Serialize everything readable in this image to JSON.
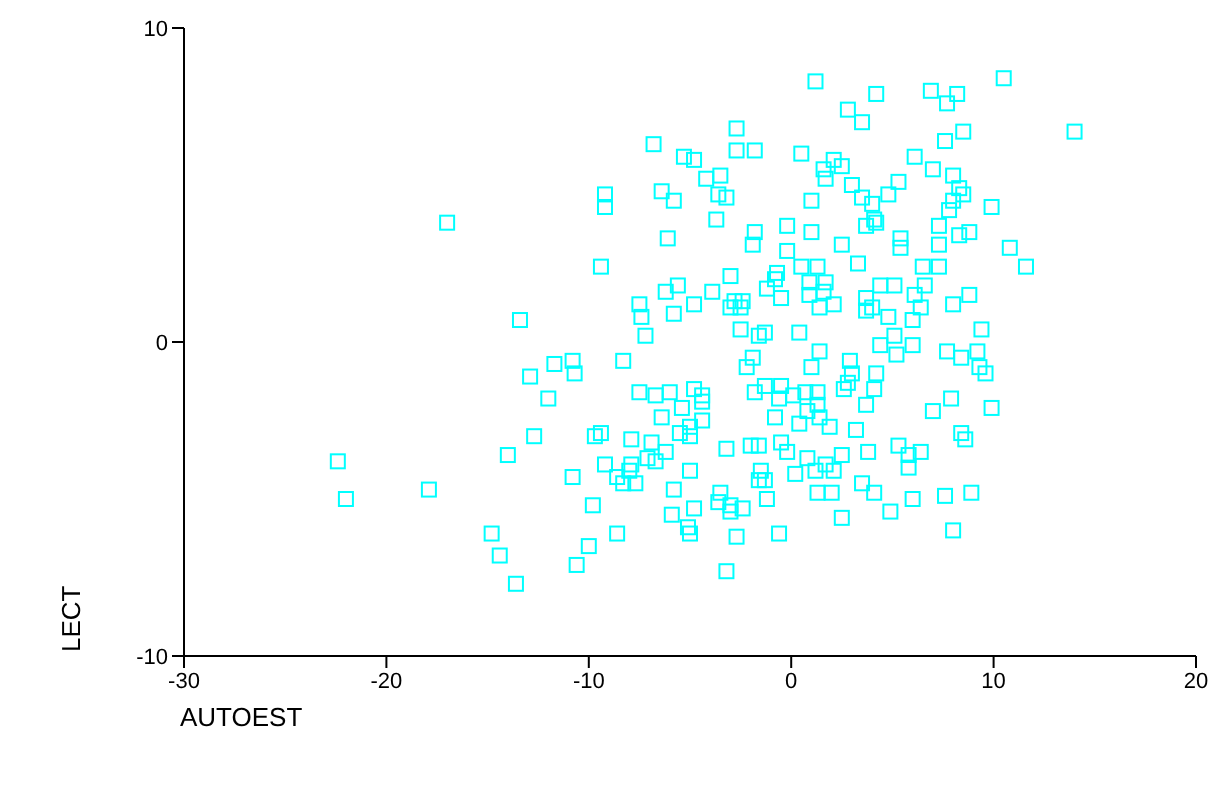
{
  "chart_data": {
    "type": "scatter",
    "xlabel": "AUTOEST",
    "ylabel": "LECT",
    "xlim": [
      -30,
      20
    ],
    "ylim": [
      -10,
      10
    ],
    "xticks": [
      -30,
      -20,
      -10,
      0,
      10,
      20
    ],
    "yticks": [
      -10,
      0,
      10
    ],
    "grid": false,
    "legend": false,
    "marker": "square",
    "series": [
      {
        "color": "#00ffff",
        "x": [
          -6.8,
          -5.3,
          -4.8,
          -9.2,
          -9.2,
          -6.4,
          -5.8,
          -17.0,
          -6.1,
          -9.4,
          -5.6,
          -6.2,
          -7.5,
          -7.4,
          -5.8,
          -4.8,
          -13.4,
          -7.2,
          1.2,
          4.2,
          6.9,
          8.2,
          7.7,
          10.5,
          2.8,
          3.5,
          -2.7,
          7.6,
          8.5,
          14.0,
          -2.7,
          -1.8,
          0.5,
          6.1,
          2.1,
          1.6,
          2.5,
          1.7,
          -4.2,
          -3.5,
          7.0,
          8.0,
          8.3,
          8.5,
          8.0,
          7.8,
          9.9,
          5.3,
          4.8,
          3.0,
          3.5,
          4.0,
          4.1,
          4.2,
          3.7,
          -3.6,
          -3.2,
          1.0,
          -3.7,
          -1.8,
          -1.9,
          -0.2,
          1.0,
          -0.2,
          2.5,
          5.4,
          5.4,
          7.3,
          7.3,
          8.3,
          8.8,
          10.8,
          11.6,
          0.5,
          1.3,
          3.3,
          6.5,
          7.3,
          -3.0,
          -0.7,
          -0.8,
          -1.2,
          0.9,
          1.7,
          0.9,
          1.6,
          4.4,
          5.1,
          6.6,
          -0.5,
          -3.9,
          -2.8,
          -2.4,
          -3.0,
          -2.5,
          1.4,
          2.1,
          3.7,
          4.0,
          3.7,
          6.1,
          6.4,
          8.0,
          8.8,
          4.8,
          6.0,
          -2.5,
          -1.6,
          -1.3,
          0.4,
          5.1,
          9.4,
          -10.8,
          -11.7,
          -8.3,
          -12.9,
          -10.7,
          -12.0,
          -7.5,
          -6.7,
          -6.0,
          -4.8,
          -5.4,
          -6.4,
          -5.0,
          -5.5,
          -5.0,
          -12.7,
          -9.7,
          -9.4,
          -7.9,
          -6.9,
          -6.2,
          -7.1,
          -6.7,
          -14.0,
          -22.4,
          -22.0,
          -17.9,
          -10.8,
          -9.2,
          -7.9,
          -8.6,
          -8.3,
          -7.7,
          -8.0,
          -5.8,
          -5.0,
          -9.8,
          -5.9,
          -4.8,
          -5.1,
          -5.0,
          -8.6,
          -14.8,
          -14.4,
          -10.0,
          -10.6,
          -13.6,
          4.4,
          5.2,
          6.0,
          7.7,
          8.4,
          9.2,
          9.3,
          9.6,
          1.4,
          -1.9,
          -2.2,
          1.0,
          2.9,
          3.0,
          4.2,
          2.8,
          2.6,
          4.1,
          -4.4,
          -4.4,
          -4.4,
          -1.3,
          -1.8,
          -0.5,
          -0.6,
          0.1,
          0.7,
          1.3,
          1.3,
          0.8,
          1.4,
          1.9,
          0.4,
          -0.8,
          3.7,
          3.2,
          7.0,
          7.9,
          9.9,
          8.4,
          8.6,
          -0.5,
          -0.2,
          -3.2,
          -2.0,
          -1.6,
          0.8,
          1.2,
          1.7,
          2.1,
          2.5,
          3.8,
          5.3,
          5.8,
          6.4,
          5.8,
          0.2,
          -1.5,
          -1.6,
          -1.3,
          1.3,
          2.0,
          3.5,
          4.1,
          6.0,
          7.6,
          8.9,
          -1.2,
          -3.5,
          -3.6,
          -3.0,
          -3.0,
          -2.4,
          2.5,
          4.9,
          -0.6,
          -2.7,
          8.0,
          -3.2
        ],
        "values": [
          6.3,
          5.9,
          5.8,
          4.7,
          4.3,
          4.8,
          4.5,
          3.8,
          3.3,
          2.4,
          1.8,
          1.6,
          1.2,
          0.8,
          0.9,
          1.2,
          0.7,
          0.2,
          8.3,
          7.9,
          8.0,
          7.9,
          7.6,
          8.4,
          7.4,
          7.0,
          6.8,
          6.4,
          6.7,
          6.7,
          6.1,
          6.1,
          6.0,
          5.9,
          5.8,
          5.5,
          5.6,
          5.2,
          5.2,
          5.3,
          5.5,
          5.3,
          4.9,
          4.7,
          4.5,
          4.2,
          4.3,
          5.1,
          4.7,
          5.0,
          4.6,
          4.4,
          3.9,
          3.8,
          3.7,
          4.7,
          4.6,
          4.5,
          3.9,
          3.5,
          3.1,
          3.7,
          3.5,
          2.9,
          3.1,
          3.3,
          3.0,
          3.7,
          3.1,
          3.4,
          3.5,
          3.0,
          2.4,
          2.4,
          2.4,
          2.5,
          2.4,
          2.4,
          2.1,
          2.2,
          2.0,
          1.7,
          1.9,
          1.9,
          1.5,
          1.6,
          1.8,
          1.8,
          1.8,
          1.4,
          1.6,
          1.3,
          1.3,
          1.1,
          1.1,
          1.1,
          1.2,
          1.4,
          1.1,
          1.0,
          1.5,
          1.1,
          1.2,
          1.5,
          0.8,
          0.7,
          0.4,
          0.2,
          0.3,
          0.3,
          0.2,
          0.4,
          -0.6,
          -0.7,
          -0.6,
          -1.1,
          -1.0,
          -1.8,
          -1.6,
          -1.7,
          -1.6,
          -1.5,
          -2.1,
          -2.4,
          -2.7,
          -2.9,
          -3.0,
          -3.0,
          -3.0,
          -2.9,
          -3.1,
          -3.2,
          -3.5,
          -3.7,
          -3.8,
          -3.6,
          -3.8,
          -5.0,
          -4.7,
          -4.3,
          -3.9,
          -3.9,
          -4.3,
          -4.5,
          -4.5,
          -4.1,
          -4.7,
          -4.1,
          -5.2,
          -5.5,
          -5.3,
          -5.9,
          -6.1,
          -6.1,
          -6.1,
          -6.8,
          -6.5,
          -7.1,
          -7.7,
          -0.1,
          -0.4,
          -0.1,
          -0.3,
          -0.5,
          -0.3,
          -0.8,
          -1.0,
          -0.3,
          -0.5,
          -0.8,
          -0.8,
          -0.6,
          -1.0,
          -1.0,
          -1.3,
          -1.5,
          -1.5,
          -1.7,
          -1.9,
          -2.5,
          -1.4,
          -1.6,
          -1.4,
          -1.8,
          -1.7,
          -1.6,
          -1.6,
          -2.0,
          -2.2,
          -2.4,
          -2.7,
          -2.6,
          -2.4,
          -2.0,
          -2.8,
          -2.2,
          -1.8,
          -2.1,
          -2.9,
          -3.1,
          -3.2,
          -3.5,
          -3.4,
          -3.3,
          -3.3,
          -3.7,
          -4.1,
          -3.9,
          -4.1,
          -3.6,
          -3.5,
          -3.3,
          -3.6,
          -3.5,
          -4.0,
          -4.2,
          -4.1,
          -4.4,
          -4.4,
          -4.8,
          -4.8,
          -4.5,
          -4.8,
          -5.0,
          -4.9,
          -4.8,
          -5.0,
          -4.8,
          -5.1,
          -5.2,
          -5.4,
          -5.3,
          -5.6,
          -5.4,
          -6.1,
          -6.2,
          -6.0,
          -7.3
        ]
      }
    ]
  }
}
